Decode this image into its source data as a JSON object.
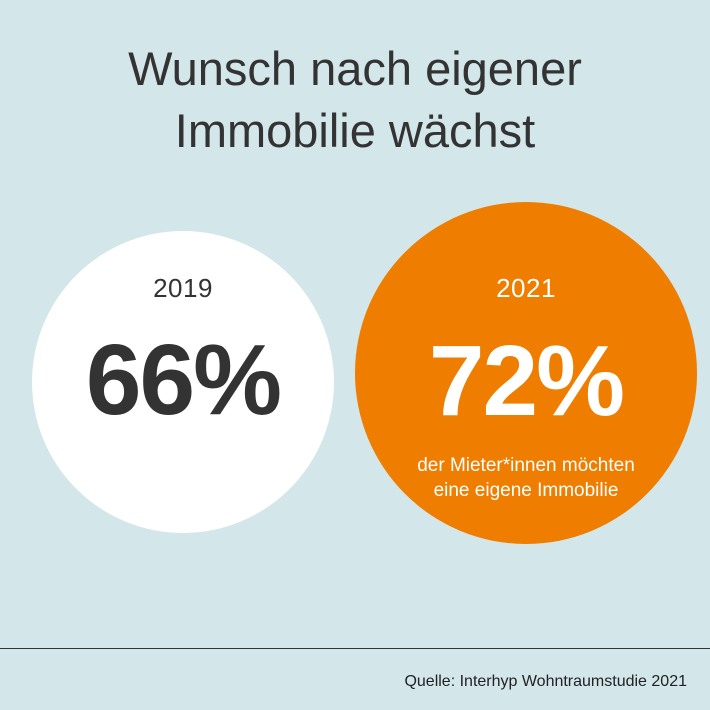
{
  "title": {
    "line1": "Wunsch nach eigener",
    "line2": "Immobilie wächst"
  },
  "chart_data": {
    "type": "bar",
    "categories": [
      "2019",
      "2021"
    ],
    "values": [
      66,
      72
    ],
    "value_labels": [
      "66%",
      "72%"
    ],
    "annotation": {
      "line1": "der Mieter*innen möchten",
      "line2": "eine eigene Immobilie"
    }
  },
  "colors": {
    "background": "#d3e6ea",
    "circle_2019": "#ffffff",
    "circle_2021": "#ee7d00",
    "text_dark": "#333333",
    "text_light": "#ffffff"
  },
  "footer": {
    "source": "Quelle: Interhyp Wohntraumstudie 2021"
  }
}
